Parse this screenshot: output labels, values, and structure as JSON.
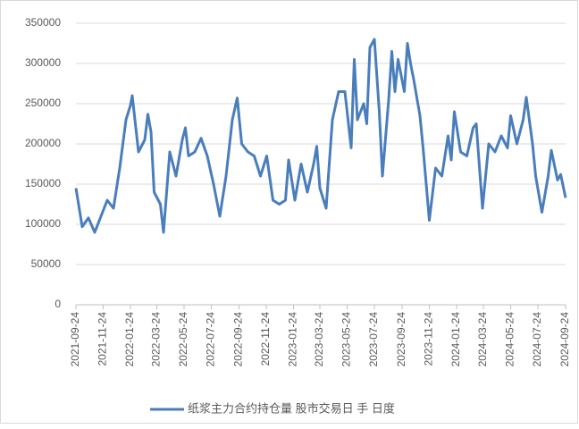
{
  "chart_data": {
    "type": "line",
    "x": [
      "2021-09-24",
      "2021-10-08",
      "2021-10-22",
      "2021-11-05",
      "2021-11-19",
      "2021-12-03",
      "2021-12-17",
      "2021-12-31",
      "2022-01-14",
      "2022-01-24",
      "2022-01-28",
      "2022-02-11",
      "2022-02-25",
      "2022-03-04",
      "2022-03-11",
      "2022-03-18",
      "2022-04-01",
      "2022-04-08",
      "2022-04-22",
      "2022-05-06",
      "2022-05-20",
      "2022-05-27",
      "2022-06-03",
      "2022-06-17",
      "2022-07-01",
      "2022-07-15",
      "2022-07-29",
      "2022-08-12",
      "2022-08-26",
      "2022-09-09",
      "2022-09-20",
      "2022-09-30",
      "2022-10-14",
      "2022-10-28",
      "2022-11-11",
      "2022-11-25",
      "2022-12-09",
      "2022-12-23",
      "2023-01-06",
      "2023-01-13",
      "2023-01-27",
      "2023-02-10",
      "2023-02-24",
      "2023-03-10",
      "2023-03-17",
      "2023-03-24",
      "2023-04-07",
      "2023-04-21",
      "2023-05-05",
      "2023-05-19",
      "2023-06-02",
      "2023-06-09",
      "2023-06-16",
      "2023-06-30",
      "2023-07-07",
      "2023-07-14",
      "2023-07-24",
      "2023-08-04",
      "2023-08-11",
      "2023-08-25",
      "2023-09-01",
      "2023-09-08",
      "2023-09-15",
      "2023-09-29",
      "2023-10-06",
      "2023-10-13",
      "2023-10-20",
      "2023-11-03",
      "2023-11-10",
      "2023-11-17",
      "2023-11-24",
      "2023-12-08",
      "2023-12-22",
      "2024-01-05",
      "2024-01-12",
      "2024-01-19",
      "2024-02-02",
      "2024-02-16",
      "2024-03-01",
      "2024-03-08",
      "2024-03-22",
      "2024-04-05",
      "2024-04-19",
      "2024-05-03",
      "2024-05-17",
      "2024-05-24",
      "2024-06-07",
      "2024-06-21",
      "2024-06-28",
      "2024-07-12",
      "2024-07-19",
      "2024-08-02",
      "2024-08-16",
      "2024-08-23",
      "2024-09-06",
      "2024-09-13",
      "2024-09-24"
    ],
    "series": [
      {
        "name": "纸浆主力合约持仓量 股市交易日 手 日度",
        "color": "#4a7ebb",
        "values": [
          145000,
          97000,
          108000,
          90000,
          110000,
          130000,
          120000,
          170000,
          230000,
          248000,
          260000,
          190000,
          205000,
          237000,
          215000,
          140000,
          125000,
          90000,
          190000,
          160000,
          205000,
          220000,
          185000,
          190000,
          207000,
          185000,
          150000,
          110000,
          160000,
          230000,
          257000,
          200000,
          190000,
          185000,
          160000,
          185000,
          130000,
          125000,
          130000,
          180000,
          130000,
          175000,
          140000,
          175000,
          197000,
          145000,
          120000,
          230000,
          265000,
          265000,
          195000,
          305000,
          230000,
          250000,
          225000,
          320000,
          330000,
          240000,
          160000,
          255000,
          315000,
          265000,
          305000,
          265000,
          325000,
          300000,
          280000,
          235000,
          195000,
          150000,
          105000,
          170000,
          160000,
          210000,
          180000,
          240000,
          190000,
          185000,
          220000,
          225000,
          120000,
          200000,
          190000,
          210000,
          195000,
          235000,
          200000,
          230000,
          258000,
          200000,
          160000,
          115000,
          160000,
          192000,
          155000,
          162000,
          133000
        ]
      }
    ],
    "xlim": [
      "2021-09-24",
      "2024-09-24"
    ],
    "xticks": [
      "2021-09-24",
      "2021-11-24",
      "2022-01-24",
      "2022-03-24",
      "2022-05-24",
      "2022-07-24",
      "2022-09-24",
      "2022-11-24",
      "2023-01-24",
      "2023-03-24",
      "2023-05-24",
      "2023-07-24",
      "2023-09-24",
      "2023-11-24",
      "2024-01-24",
      "2024-03-24",
      "2024-05-24",
      "2024-07-24",
      "2024-09-24"
    ],
    "ylim": [
      0,
      350000
    ],
    "yticks": [
      0,
      50000,
      100000,
      150000,
      200000,
      250000,
      300000,
      350000
    ],
    "grid": true
  }
}
